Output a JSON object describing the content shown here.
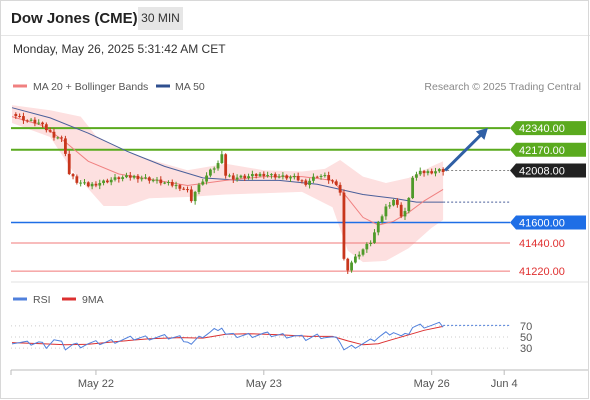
{
  "header": {
    "instrument": "Dow Jones (CME)",
    "timeframe": "30 MIN",
    "datetime": "Monday, May 26, 2025 5:31:42 AM CET"
  },
  "legend": {
    "ma20": "MA 20 + Bollinger Bands",
    "ma50": "MA 50",
    "credit": "Research © 2025 Trading Central",
    "rsi": "RSI",
    "rsi_ma": "9MA"
  },
  "colors": {
    "ma20": "#f08080",
    "bollinger": "#fde0e0",
    "ma50": "#4a5f9a",
    "resistance": "#5aaa1e",
    "support_blue": "#1e6ee6",
    "support_red": "#f07878",
    "up_candle": "#4f9a2a",
    "down_candle": "#c8361c",
    "rsi": "#5080dc",
    "rsi_ma": "#dc3030",
    "arrow": "#2f5fa5"
  },
  "chart_data": [
    {
      "type": "candlestick",
      "x_labels": [
        "May 22",
        "May 23",
        "May 26",
        "Jun 4"
      ],
      "ylim": [
        41150,
        42560
      ],
      "price_labels": [
        {
          "value": 42340,
          "label": "42340.00",
          "kind": "resistance"
        },
        {
          "value": 42170,
          "label": "42170.00",
          "kind": "resistance"
        },
        {
          "value": 42008,
          "label": "42008.00",
          "kind": "last"
        },
        {
          "value": 41600,
          "label": "41600.00",
          "kind": "support-blue"
        },
        {
          "value": 41440,
          "label": "41440.00",
          "kind": "support-red"
        },
        {
          "value": 41220,
          "label": "41220.00",
          "kind": "support-red"
        }
      ],
      "close_path": [
        [
          0,
          42450
        ],
        [
          4,
          42400
        ],
        [
          7,
          42380
        ],
        [
          9,
          42330
        ],
        [
          11,
          42280
        ],
        [
          12,
          42270
        ],
        [
          13,
          42250
        ],
        [
          14,
          42150
        ],
        [
          15,
          41980
        ],
        [
          17,
          41920
        ],
        [
          20,
          41890
        ],
        [
          24,
          41920
        ],
        [
          28,
          41950
        ],
        [
          32,
          41960
        ],
        [
          36,
          41940
        ],
        [
          40,
          41910
        ],
        [
          44,
          41880
        ],
        [
          46,
          41850
        ],
        [
          47,
          41780
        ],
        [
          48,
          41840
        ],
        [
          50,
          41930
        ],
        [
          52,
          42000
        ],
        [
          54,
          42060
        ],
        [
          55,
          42150
        ],
        [
          56,
          41970
        ],
        [
          58,
          41950
        ],
        [
          62,
          41960
        ],
        [
          66,
          41980
        ],
        [
          70,
          41960
        ],
        [
          74,
          41950
        ],
        [
          77,
          41910
        ],
        [
          80,
          41970
        ],
        [
          82,
          41960
        ],
        [
          84,
          41920
        ],
        [
          86,
          41840
        ],
        [
          87,
          41310
        ],
        [
          88,
          41240
        ],
        [
          89,
          41290
        ],
        [
          91,
          41360
        ],
        [
          94,
          41450
        ],
        [
          96,
          41590
        ],
        [
          98,
          41720
        ],
        [
          100,
          41780
        ],
        [
          101,
          41730
        ],
        [
          102,
          41660
        ],
        [
          103,
          41690
        ],
        [
          104,
          41780
        ],
        [
          105,
          41960
        ],
        [
          107,
          41990
        ],
        [
          110,
          42000
        ],
        [
          112,
          42010
        ],
        [
          113,
          42008
        ]
      ],
      "ma20_path": [
        [
          0,
          42430
        ],
        [
          8,
          42360
        ],
        [
          14,
          42230
        ],
        [
          20,
          42080
        ],
        [
          28,
          41980
        ],
        [
          36,
          41940
        ],
        [
          46,
          41890
        ],
        [
          56,
          41930
        ],
        [
          66,
          41960
        ],
        [
          76,
          41960
        ],
        [
          84,
          41930
        ],
        [
          88,
          41790
        ],
        [
          92,
          41640
        ],
        [
          96,
          41580
        ],
        [
          100,
          41610
        ],
        [
          104,
          41680
        ],
        [
          108,
          41770
        ],
        [
          113,
          41860
        ]
      ],
      "ma50_path": [
        [
          0,
          42500
        ],
        [
          10,
          42420
        ],
        [
          20,
          42300
        ],
        [
          30,
          42160
        ],
        [
          40,
          42040
        ],
        [
          50,
          41950
        ],
        [
          60,
          41930
        ],
        [
          70,
          41930
        ],
        [
          80,
          41900
        ],
        [
          86,
          41860
        ],
        [
          92,
          41820
        ],
        [
          100,
          41790
        ],
        [
          106,
          41760
        ],
        [
          113,
          41760
        ]
      ],
      "bollinger_upper": [
        [
          0,
          42520
        ],
        [
          10,
          42480
        ],
        [
          18,
          42430
        ],
        [
          22,
          42280
        ],
        [
          30,
          42150
        ],
        [
          40,
          42060
        ],
        [
          46,
          42010
        ],
        [
          56,
          42060
        ],
        [
          66,
          42010
        ],
        [
          76,
          42000
        ],
        [
          82,
          42020
        ],
        [
          86,
          42090
        ],
        [
          92,
          41960
        ],
        [
          98,
          41910
        ],
        [
          104,
          41950
        ],
        [
          110,
          42040
        ],
        [
          113,
          42080
        ]
      ],
      "bollinger_lower": [
        [
          0,
          42380
        ],
        [
          10,
          42270
        ],
        [
          16,
          42000
        ],
        [
          24,
          41730
        ],
        [
          30,
          41730
        ],
        [
          36,
          41790
        ],
        [
          46,
          41800
        ],
        [
          56,
          41820
        ],
        [
          66,
          41830
        ],
        [
          76,
          41840
        ],
        [
          84,
          41720
        ],
        [
          88,
          41380
        ],
        [
          92,
          41290
        ],
        [
          98,
          41300
        ],
        [
          104,
          41400
        ],
        [
          110,
          41560
        ],
        [
          113,
          41620
        ]
      ],
      "projection_arrow": {
        "from": [
          113,
          42008
        ],
        "to": [
          124,
          42320
        ]
      }
    },
    {
      "type": "line",
      "title": "RSI",
      "series": [
        {
          "name": "RSI"
        },
        {
          "name": "9MA"
        }
      ],
      "ylim": [
        5,
        95
      ],
      "y_ticks": [
        70,
        50,
        30
      ],
      "rsi_path": [
        [
          0,
          42
        ],
        [
          4,
          38
        ],
        [
          7,
          40
        ],
        [
          9,
          34
        ],
        [
          11,
          45
        ],
        [
          13,
          38
        ],
        [
          14,
          30
        ],
        [
          16,
          36
        ],
        [
          18,
          35
        ],
        [
          20,
          38
        ],
        [
          24,
          40
        ],
        [
          28,
          44
        ],
        [
          32,
          48
        ],
        [
          36,
          49
        ],
        [
          40,
          50
        ],
        [
          44,
          49
        ],
        [
          46,
          43
        ],
        [
          47,
          37
        ],
        [
          48,
          42
        ],
        [
          50,
          52
        ],
        [
          52,
          58
        ],
        [
          54,
          66
        ],
        [
          55,
          68
        ],
        [
          56,
          55
        ],
        [
          58,
          52
        ],
        [
          62,
          53
        ],
        [
          66,
          55
        ],
        [
          70,
          53
        ],
        [
          74,
          52
        ],
        [
          77,
          47
        ],
        [
          80,
          52
        ],
        [
          82,
          51
        ],
        [
          84,
          48
        ],
        [
          86,
          43
        ],
        [
          87,
          28
        ],
        [
          88,
          30
        ],
        [
          89,
          32
        ],
        [
          91,
          36
        ],
        [
          94,
          42
        ],
        [
          96,
          50
        ],
        [
          98,
          56
        ],
        [
          100,
          60
        ],
        [
          101,
          55
        ],
        [
          102,
          50
        ],
        [
          103,
          52
        ],
        [
          104,
          58
        ],
        [
          105,
          68
        ],
        [
          107,
          70
        ],
        [
          110,
          71
        ],
        [
          112,
          72
        ],
        [
          113,
          71
        ]
      ],
      "rsi_ma_path": [
        [
          0,
          40
        ],
        [
          8,
          38
        ],
        [
          14,
          36
        ],
        [
          20,
          37
        ],
        [
          28,
          42
        ],
        [
          36,
          47
        ],
        [
          44,
          49
        ],
        [
          50,
          48
        ],
        [
          56,
          55
        ],
        [
          62,
          56
        ],
        [
          70,
          54
        ],
        [
          78,
          51
        ],
        [
          84,
          51
        ],
        [
          88,
          43
        ],
        [
          92,
          36
        ],
        [
          96,
          38
        ],
        [
          100,
          46
        ],
        [
          104,
          54
        ],
        [
          108,
          62
        ],
        [
          113,
          69
        ]
      ]
    }
  ]
}
